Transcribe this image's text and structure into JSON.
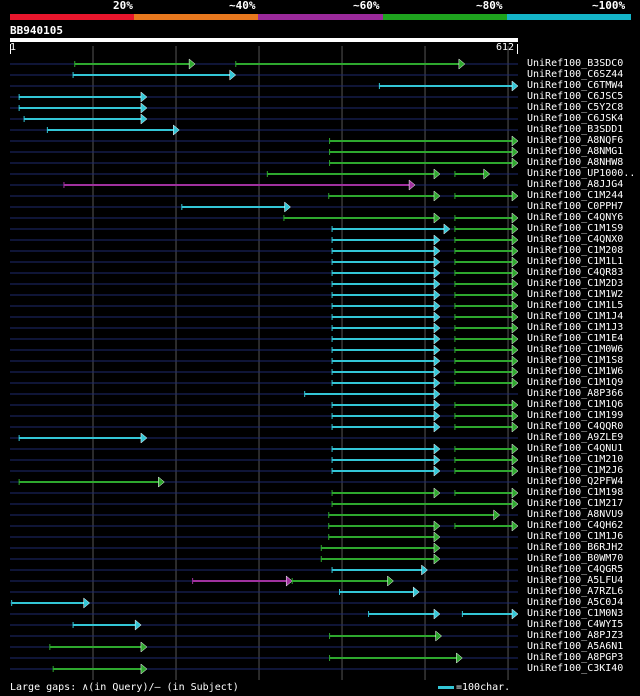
{
  "legend": {
    "colors": [
      "#e8162c",
      "#e8781e",
      "#9b2a9b",
      "#1ea31e",
      "#14b4c8"
    ],
    "labels": [
      "20%",
      "~40%",
      "~60%",
      "~80%",
      "~100%"
    ]
  },
  "query": {
    "name": "BB940105",
    "start_label": "1",
    "end_label": "612",
    "length": 612
  },
  "colors": {
    "cyan": "#33c6d6",
    "green": "#2ea82e",
    "purple": "#a0319e",
    "gridline": "#555555",
    "rowline": "#1e2a6e"
  },
  "hits": [
    {
      "name": "UniRef100_B3SDC0",
      "segs": [
        {
          "s": 78,
          "e": 223,
          "c": "green"
        },
        {
          "s": 272,
          "e": 548,
          "c": "green"
        }
      ]
    },
    {
      "name": "UniRef100_C6SZ44",
      "segs": [
        {
          "s": 76,
          "e": 272,
          "c": "cyan"
        }
      ]
    },
    {
      "name": "UniRef100_C6TMW4",
      "segs": [
        {
          "s": 445,
          "e": 612,
          "c": "cyan"
        }
      ]
    },
    {
      "name": "UniRef100_C6JSC5",
      "segs": [
        {
          "s": 11,
          "e": 165,
          "c": "cyan"
        }
      ]
    },
    {
      "name": "UniRef100_C5Y2C8",
      "segs": [
        {
          "s": 11,
          "e": 165,
          "c": "cyan"
        }
      ]
    },
    {
      "name": "UniRef100_C6JSK4",
      "segs": [
        {
          "s": 17,
          "e": 165,
          "c": "cyan"
        }
      ]
    },
    {
      "name": "UniRef100_B3SDD1",
      "segs": [
        {
          "s": 45,
          "e": 204,
          "c": "cyan"
        }
      ]
    },
    {
      "name": "UniRef100_A8NQF6",
      "segs": [
        {
          "s": 385,
          "e": 612,
          "c": "green"
        }
      ]
    },
    {
      "name": "UniRef100_A8NMG1",
      "segs": [
        {
          "s": 385,
          "e": 612,
          "c": "green"
        }
      ]
    },
    {
      "name": "UniRef100_A8NHW8",
      "segs": [
        {
          "s": 385,
          "e": 612,
          "c": "green"
        }
      ]
    },
    {
      "name": "UniRef100_UP1000..",
      "segs": [
        {
          "s": 310,
          "e": 518,
          "c": "green"
        },
        {
          "s": 536,
          "e": 578,
          "c": "green"
        }
      ]
    },
    {
      "name": "UniRef100_A8JJG4",
      "segs": [
        {
          "s": 65,
          "e": 488,
          "c": "purple"
        }
      ]
    },
    {
      "name": "UniRef100_C1M244",
      "segs": [
        {
          "s": 384,
          "e": 518,
          "c": "green"
        },
        {
          "s": 536,
          "e": 612,
          "c": "green"
        }
      ]
    },
    {
      "name": "UniRef100_C0PPH7",
      "segs": [
        {
          "s": 207,
          "e": 338,
          "c": "cyan"
        }
      ]
    },
    {
      "name": "UniRef100_C4QNY6",
      "segs": [
        {
          "s": 330,
          "e": 518,
          "c": "green"
        },
        {
          "s": 536,
          "e": 612,
          "c": "green"
        }
      ]
    },
    {
      "name": "UniRef100_C1M1S9",
      "segs": [
        {
          "s": 388,
          "e": 530,
          "c": "cyan"
        },
        {
          "s": 536,
          "e": 612,
          "c": "green"
        }
      ]
    },
    {
      "name": "UniRef100_C4QNX0",
      "segs": [
        {
          "s": 388,
          "e": 518,
          "c": "cyan"
        },
        {
          "s": 536,
          "e": 612,
          "c": "green"
        }
      ]
    },
    {
      "name": "UniRef100_C1M208",
      "segs": [
        {
          "s": 388,
          "e": 518,
          "c": "cyan"
        },
        {
          "s": 536,
          "e": 612,
          "c": "green"
        }
      ]
    },
    {
      "name": "UniRef100_C1M1L1",
      "segs": [
        {
          "s": 388,
          "e": 518,
          "c": "cyan"
        },
        {
          "s": 536,
          "e": 612,
          "c": "green"
        }
      ]
    },
    {
      "name": "UniRef100_C4QR83",
      "segs": [
        {
          "s": 388,
          "e": 518,
          "c": "cyan"
        },
        {
          "s": 536,
          "e": 612,
          "c": "green"
        }
      ]
    },
    {
      "name": "UniRef100_C1M2D3",
      "segs": [
        {
          "s": 388,
          "e": 518,
          "c": "cyan"
        },
        {
          "s": 536,
          "e": 612,
          "c": "green"
        }
      ]
    },
    {
      "name": "UniRef100_C1M1W2",
      "segs": [
        {
          "s": 388,
          "e": 518,
          "c": "cyan"
        },
        {
          "s": 536,
          "e": 612,
          "c": "green"
        }
      ]
    },
    {
      "name": "UniRef100_C1M1L5",
      "segs": [
        {
          "s": 388,
          "e": 518,
          "c": "cyan"
        },
        {
          "s": 536,
          "e": 612,
          "c": "green"
        }
      ]
    },
    {
      "name": "UniRef100_C1M1J4",
      "segs": [
        {
          "s": 388,
          "e": 518,
          "c": "cyan"
        },
        {
          "s": 536,
          "e": 612,
          "c": "green"
        }
      ]
    },
    {
      "name": "UniRef100_C1M1J3",
      "segs": [
        {
          "s": 388,
          "e": 518,
          "c": "cyan"
        },
        {
          "s": 536,
          "e": 612,
          "c": "green"
        }
      ]
    },
    {
      "name": "UniRef100_C1M1E4",
      "segs": [
        {
          "s": 388,
          "e": 518,
          "c": "cyan"
        },
        {
          "s": 536,
          "e": 612,
          "c": "green"
        }
      ]
    },
    {
      "name": "UniRef100_C1M0W6",
      "segs": [
        {
          "s": 388,
          "e": 518,
          "c": "cyan"
        },
        {
          "s": 536,
          "e": 612,
          "c": "green"
        }
      ]
    },
    {
      "name": "UniRef100_C1M1S8",
      "segs": [
        {
          "s": 388,
          "e": 518,
          "c": "cyan"
        },
        {
          "s": 536,
          "e": 612,
          "c": "green"
        }
      ]
    },
    {
      "name": "UniRef100_C1M1W6",
      "segs": [
        {
          "s": 388,
          "e": 518,
          "c": "cyan"
        },
        {
          "s": 536,
          "e": 612,
          "c": "green"
        }
      ]
    },
    {
      "name": "UniRef100_C1M1Q9",
      "segs": [
        {
          "s": 388,
          "e": 518,
          "c": "cyan"
        },
        {
          "s": 536,
          "e": 612,
          "c": "green"
        }
      ]
    },
    {
      "name": "UniRef100_A8P366",
      "segs": [
        {
          "s": 355,
          "e": 518,
          "c": "cyan"
        }
      ]
    },
    {
      "name": "UniRef100_C1M1Q6",
      "segs": [
        {
          "s": 388,
          "e": 518,
          "c": "cyan"
        },
        {
          "s": 536,
          "e": 612,
          "c": "green"
        }
      ]
    },
    {
      "name": "UniRef100_C1M199",
      "segs": [
        {
          "s": 388,
          "e": 518,
          "c": "cyan"
        },
        {
          "s": 536,
          "e": 612,
          "c": "green"
        }
      ]
    },
    {
      "name": "UniRef100_C4QQR0",
      "segs": [
        {
          "s": 388,
          "e": 518,
          "c": "cyan"
        },
        {
          "s": 536,
          "e": 612,
          "c": "green"
        }
      ]
    },
    {
      "name": "UniRef100_A9ZLE9",
      "segs": [
        {
          "s": 11,
          "e": 165,
          "c": "cyan"
        }
      ]
    },
    {
      "name": "UniRef100_C4QNU1",
      "segs": [
        {
          "s": 388,
          "e": 518,
          "c": "cyan"
        },
        {
          "s": 536,
          "e": 612,
          "c": "green"
        }
      ]
    },
    {
      "name": "UniRef100_C1M210",
      "segs": [
        {
          "s": 388,
          "e": 518,
          "c": "cyan"
        },
        {
          "s": 536,
          "e": 612,
          "c": "green"
        }
      ]
    },
    {
      "name": "UniRef100_C1M2J6",
      "segs": [
        {
          "s": 388,
          "e": 518,
          "c": "cyan"
        },
        {
          "s": 536,
          "e": 612,
          "c": "green"
        }
      ]
    },
    {
      "name": "UniRef100_Q2PFW4",
      "segs": [
        {
          "s": 11,
          "e": 186,
          "c": "green"
        }
      ]
    },
    {
      "name": "UniRef100_C1M198",
      "segs": [
        {
          "s": 388,
          "e": 518,
          "c": "green"
        },
        {
          "s": 536,
          "e": 612,
          "c": "green"
        }
      ]
    },
    {
      "name": "UniRef100_C1M217",
      "segs": [
        {
          "s": 388,
          "e": 612,
          "c": "green"
        }
      ]
    },
    {
      "name": "UniRef100_A8NVU9",
      "segs": [
        {
          "s": 384,
          "e": 590,
          "c": "green"
        }
      ]
    },
    {
      "name": "UniRef100_C4QH62",
      "segs": [
        {
          "s": 384,
          "e": 518,
          "c": "green"
        },
        {
          "s": 536,
          "e": 612,
          "c": "green"
        }
      ]
    },
    {
      "name": "UniRef100_C1M1J6",
      "segs": [
        {
          "s": 384,
          "e": 518,
          "c": "green"
        }
      ]
    },
    {
      "name": "UniRef100_B6RJH2",
      "segs": [
        {
          "s": 375,
          "e": 518,
          "c": "green"
        }
      ]
    },
    {
      "name": "UniRef100_B0WM70",
      "segs": [
        {
          "s": 375,
          "e": 518,
          "c": "green"
        }
      ]
    },
    {
      "name": "UniRef100_C4QGR5",
      "segs": [
        {
          "s": 388,
          "e": 503,
          "c": "cyan"
        }
      ]
    },
    {
      "name": "UniRef100_A5LFU4",
      "segs": [
        {
          "s": 220,
          "e": 340,
          "c": "purple"
        },
        {
          "s": 340,
          "e": 462,
          "c": "green"
        }
      ]
    },
    {
      "name": "UniRef100_A7RZL6",
      "segs": [
        {
          "s": 397,
          "e": 493,
          "c": "cyan"
        }
      ]
    },
    {
      "name": "UniRef100_A5C0J4",
      "segs": [
        {
          "s": 2,
          "e": 96,
          "c": "cyan"
        }
      ]
    },
    {
      "name": "UniRef100_C1M0N3",
      "segs": [
        {
          "s": 432,
          "e": 518,
          "c": "cyan"
        },
        {
          "s": 545,
          "e": 612,
          "c": "cyan"
        }
      ]
    },
    {
      "name": "UniRef100_C4WYI5",
      "segs": [
        {
          "s": 76,
          "e": 158,
          "c": "cyan"
        }
      ]
    },
    {
      "name": "UniRef100_A8PJZ3",
      "segs": [
        {
          "s": 385,
          "e": 520,
          "c": "green"
        }
      ]
    },
    {
      "name": "UniRef100_A5A6N1",
      "segs": [
        {
          "s": 48,
          "e": 165,
          "c": "green"
        }
      ]
    },
    {
      "name": "UniRef100_A8PGP3",
      "segs": [
        {
          "s": 385,
          "e": 545,
          "c": "green"
        }
      ]
    },
    {
      "name": "UniRef100_C3KI40",
      "segs": [
        {
          "s": 52,
          "e": 165,
          "c": "green"
        }
      ]
    }
  ],
  "footer": {
    "gaps_text": "Large gaps: ∧(in Query)/– (in Subject)",
    "scale_text": "=100char."
  }
}
